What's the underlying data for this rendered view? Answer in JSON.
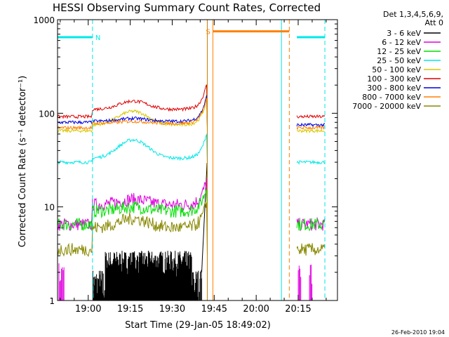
{
  "chart_data": {
    "type": "line",
    "title": "HESSI Observing Summary Count Rates, Corrected",
    "xlabel": "Start Time (29-Jan-05 18:49:02)",
    "ylabel": "Corrected Count Rate (s⁻¹ detector⁻¹)",
    "yscale": "log",
    "ylim": [
      1,
      1000
    ],
    "xlim_minutes_after_start": [
      0,
      100
    ],
    "x_ticks": [
      {
        "label": "19:00",
        "minutes": 10.97
      },
      {
        "label": "19:15",
        "minutes": 25.97
      },
      {
        "label": "19:30",
        "minutes": 40.97
      },
      {
        "label": "19:45",
        "minutes": 55.97
      },
      {
        "label": "20:00",
        "minutes": 70.97
      },
      {
        "label": "20:15",
        "minutes": 85.97
      }
    ],
    "y_ticks": [
      {
        "label": "1",
        "value": 1
      },
      {
        "label": "10",
        "value": 10
      },
      {
        "label": "100",
        "value": 100
      },
      {
        "label": "1000",
        "value": 1000
      }
    ],
    "legend_header": [
      "Det 1,3,4,5,6,9,",
      "Att 0"
    ],
    "legend_position": "right",
    "series": [
      {
        "name": "3 - 6 keV",
        "color": "#000000"
      },
      {
        "name": "6 - 12 keV",
        "color": "#e000e0"
      },
      {
        "name": "12 - 25 keV",
        "color": "#00e000"
      },
      {
        "name": "25 - 50 keV",
        "color": "#00e8e8"
      },
      {
        "name": "50 - 100 keV",
        "color": "#d8c800"
      },
      {
        "name": "100 - 300 keV",
        "color": "#e00000"
      },
      {
        "name": "300 - 800 keV",
        "color": "#0000e0"
      },
      {
        "name": "800 - 7000 keV",
        "color": "#ff8000"
      },
      {
        "name": "7000 - 20000 keV",
        "color": "#888800"
      }
    ],
    "segments": [
      [
        0,
        12.5
      ],
      [
        12.5,
        53.5
      ],
      [
        85.5,
        95.5
      ]
    ],
    "approx_levels": [
      {
        "name": "3 - 6 keV",
        "first": null,
        "mid": [
          1.5,
          2.5
        ],
        "last": null
      },
      {
        "name": "6 - 12 keV",
        "first": 6.5,
        "mid": [
          10.5,
          12
        ],
        "last": 6.5
      },
      {
        "name": "12 - 25 keV",
        "first": 6.5,
        "mid": [
          9,
          10
        ],
        "last": 6.5
      },
      {
        "name": "25 - 50 keV",
        "first": 30,
        "mid": [
          33,
          52
        ],
        "last": 30
      },
      {
        "name": "50 - 100 keV",
        "first": 65,
        "mid": [
          75,
          105
        ],
        "last": 65
      },
      {
        "name": "100 - 300 keV",
        "first": 92,
        "mid": [
          110,
          135
        ],
        "last": 92
      },
      {
        "name": "300 - 800 keV",
        "first": 80,
        "mid": [
          82,
          88
        ],
        "last": 75
      },
      {
        "name": "800 - 7000 keV",
        "first": 70,
        "mid": [
          78,
          82
        ],
        "last": 70
      },
      {
        "name": "7000 - 20000 keV",
        "first": 3.5,
        "mid": [
          6,
          7.5
        ],
        "last": 3.5
      }
    ],
    "flags": [
      {
        "label": "N",
        "color": "#00e8e8",
        "y": 650,
        "spans": [
          [
            0,
            12.5
          ],
          [
            85.5,
            95.5
          ]
        ]
      },
      {
        "label": "S",
        "color": "#ff8000",
        "y": 750,
        "spans": [
          [
            55.5,
            82.8
          ]
        ]
      }
    ],
    "markers": [
      {
        "name": "night-end",
        "color": "#00e8e8",
        "x": 12.5,
        "style": "dashed"
      },
      {
        "name": "saa-start",
        "color": "#c08000",
        "x": 53.5,
        "style": "solid"
      },
      {
        "name": "night-start",
        "color": "#00e8e8",
        "x": 80.0,
        "style": "solid"
      },
      {
        "name": "saa-end",
        "color": "#ff8000",
        "x": 55.5,
        "style": "solid"
      },
      {
        "name": "saa-end-dashed",
        "color": "#ff8000",
        "x": 82.8,
        "style": "dashed"
      },
      {
        "name": "night-end-2",
        "color": "#00e8e8",
        "x": 95.5,
        "style": "dashed"
      }
    ]
  },
  "footer": {
    "timestamp": "26-Feb-2010 19:04"
  }
}
